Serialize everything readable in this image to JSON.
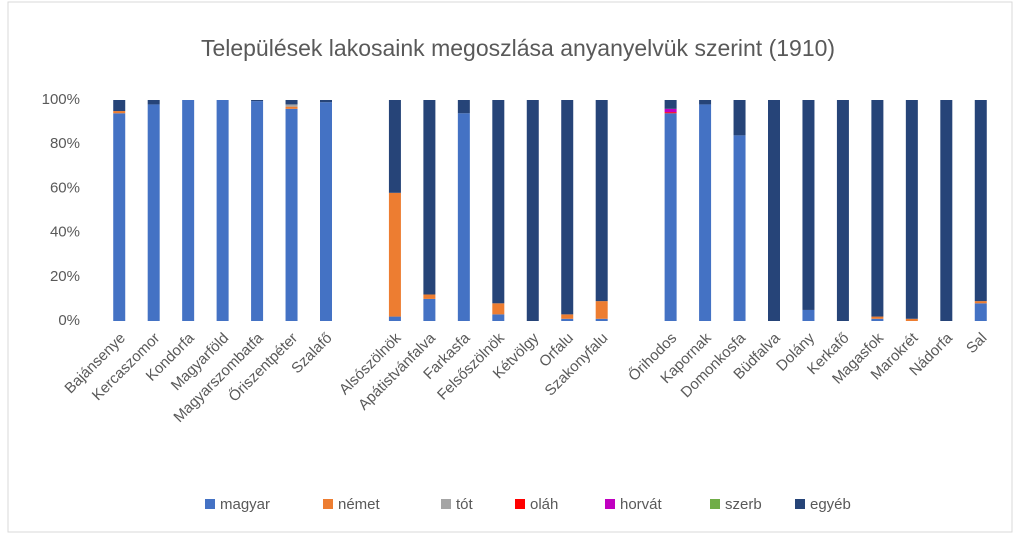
{
  "chart_data": {
    "type": "stacked_bar",
    "title": "Települések lakosaink megoszlása anyanyelvük szerint (1910)",
    "categories": [
      "Bajánsenye",
      "Kercaszomor",
      "Kondorfa",
      "Magyarföld",
      "Magyarszombatfa",
      "Őriszentpéter",
      "Szalafő",
      null,
      "Alsószölnök",
      "Apátistvánfalva",
      "Farkasfa",
      "Felsőszölnök",
      "Kétvölgy",
      "Orfalu",
      "Szakonyfalu",
      null,
      "Őrihodos",
      "Kapornak",
      "Domonkosfa",
      "Büdfalva",
      "Dolány",
      "Kerkafő",
      "Magasfok",
      "Marokrét",
      "Nádorfa",
      "Sal"
    ],
    "series": [
      {
        "name": "magyar",
        "color": "#4472c4",
        "values": [
          94,
          98,
          100,
          100,
          99.5,
          96,
          99,
          null,
          2,
          10,
          94,
          3,
          0,
          1,
          1,
          null,
          94,
          98,
          84,
          0,
          5,
          0,
          1,
          0,
          0,
          8
        ]
      },
      {
        "name": "német",
        "color": "#ed7d31",
        "values": [
          1,
          0,
          0,
          0,
          0,
          1,
          0,
          null,
          56,
          2,
          0,
          5,
          0,
          2,
          8,
          null,
          0,
          0,
          0,
          0,
          0,
          0,
          1,
          1,
          0,
          1
        ]
      },
      {
        "name": "tót",
        "color": "#a5a5a5",
        "values": [
          0,
          0,
          0,
          0,
          0,
          1,
          0,
          null,
          0,
          0,
          0,
          0,
          0,
          0,
          0,
          null,
          0,
          0,
          0,
          0,
          0,
          0,
          0,
          0,
          0,
          0
        ]
      },
      {
        "name": "oláh",
        "color": "#ff0000",
        "values": [
          0,
          0,
          0,
          0,
          0,
          0,
          0,
          null,
          0,
          0,
          0,
          0,
          0,
          0,
          0,
          null,
          0.5,
          0,
          0,
          0,
          0,
          0,
          0,
          0,
          0,
          0
        ]
      },
      {
        "name": "horvát",
        "color": "#c000c0",
        "values": [
          0,
          0,
          0,
          0,
          0,
          0,
          0,
          null,
          0,
          0,
          0,
          0,
          0,
          0,
          0,
          null,
          1.5,
          0,
          0,
          0,
          0,
          0,
          0,
          0,
          0,
          0
        ]
      },
      {
        "name": "szerb",
        "color": "#70ad47",
        "values": [
          0,
          0,
          0,
          0,
          0,
          0,
          0,
          null,
          0,
          0,
          0,
          0,
          0,
          0,
          0,
          null,
          0,
          0,
          0,
          0,
          0,
          0,
          0,
          0,
          0,
          0
        ]
      },
      {
        "name": "egyéb",
        "color": "#264478",
        "values": [
          5,
          2,
          0,
          0,
          0.5,
          2,
          1,
          null,
          42,
          88,
          6,
          92,
          100,
          97,
          91,
          null,
          4,
          2,
          16,
          100,
          95,
          100,
          98,
          99,
          100,
          91
        ]
      }
    ],
    "ylim": [
      0,
      100
    ],
    "yticks": [
      {
        "value": 0,
        "label": "0%"
      },
      {
        "value": 20,
        "label": "20%"
      },
      {
        "value": 40,
        "label": "40%"
      },
      {
        "value": 60,
        "label": "60%"
      },
      {
        "value": 80,
        "label": "80%"
      },
      {
        "value": 100,
        "label": "100%"
      }
    ],
    "legend": "bottom"
  }
}
